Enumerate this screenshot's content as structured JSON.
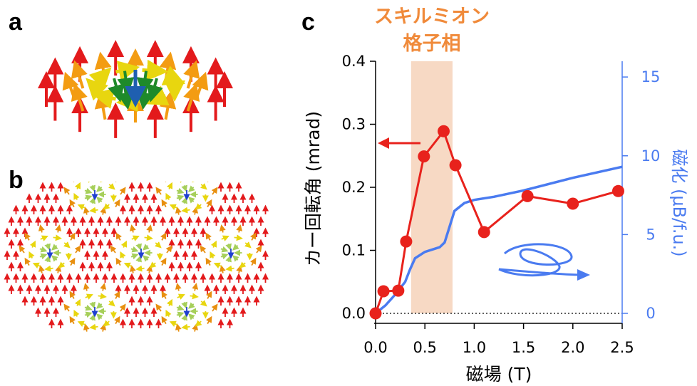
{
  "panels": {
    "a": "a",
    "b": "b",
    "c": "c"
  },
  "colors": {
    "kerr_series": "#e8221c",
    "magnetization_series": "#4a7bf0",
    "skyrmion_band": "#f7d9c4",
    "skyrmion_label": "#f08a3a",
    "spin_up": "#e31a1c",
    "spin_orange": "#f39c12",
    "spin_yellow": "#f2e61b",
    "spin_green": "#1e8a2a",
    "spin_lightgreen": "#b5d96b",
    "spin_core": "#1f3fd0"
  },
  "chart_data": {
    "type": "line",
    "annotation": {
      "line1": "スキルミオン",
      "line2": "格子相",
      "x_range": [
        0.36,
        0.78
      ]
    },
    "xlabel": "磁場 (T)",
    "ylabel_left": "カー回転角 (mrad)",
    "ylabel_right": "磁化 (μB/f.u.)",
    "xlim": [
      0.0,
      2.5
    ],
    "ylim_left": [
      0.0,
      0.4
    ],
    "ylim_right": [
      0,
      16
    ],
    "x_ticks": [
      "0.0",
      "0.5",
      "1.0",
      "1.5",
      "2.0",
      "2.5"
    ],
    "y_ticks_left": [
      "0.0",
      "0.1",
      "0.2",
      "0.3",
      "0.4"
    ],
    "y_ticks_right": [
      "0",
      "5",
      "10",
      "15"
    ],
    "zero_line": "dotted",
    "series": [
      {
        "axis": "left",
        "marker": "circle",
        "x": [
          0.0,
          0.08,
          0.23,
          0.31,
          0.49,
          0.69,
          0.81,
          1.1,
          1.54,
          2.0,
          2.46
        ],
        "y": [
          0.0,
          0.035,
          0.036,
          0.114,
          0.249,
          0.289,
          0.235,
          0.129,
          0.186,
          0.174,
          0.194
        ]
      },
      {
        "axis": "right",
        "marker": "none",
        "x": [
          0.0,
          0.1,
          0.2,
          0.3,
          0.35,
          0.4,
          0.5,
          0.6,
          0.65,
          0.7,
          0.75,
          0.8,
          0.9,
          1.0,
          1.2,
          1.5,
          2.0,
          2.5
        ],
        "y": [
          0.0,
          0.5,
          1.2,
          2.0,
          2.8,
          3.5,
          3.9,
          4.1,
          4.2,
          4.5,
          5.5,
          6.5,
          7.0,
          7.2,
          7.4,
          7.8,
          8.6,
          9.3
        ]
      }
    ]
  }
}
